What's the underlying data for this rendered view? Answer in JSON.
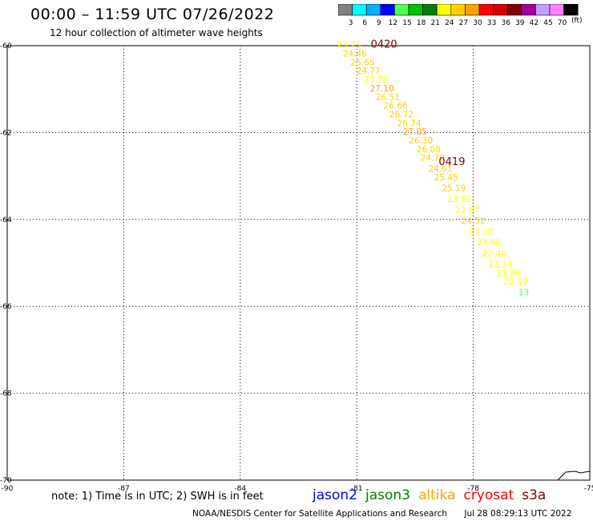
{
  "header": {
    "title": "00:00 – 11:59 UTC 07/26/2022",
    "subtitle": "12 hour collection of altimeter wave heights"
  },
  "colorbar": {
    "colors": [
      "#808080",
      "#00ffff",
      "#00b0ff",
      "#0000ff",
      "#50ff50",
      "#00c000",
      "#008000",
      "#ffff00",
      "#ffd000",
      "#ffa000",
      "#ff0000",
      "#d00000",
      "#800000",
      "#a000a0",
      "#c0a0ff",
      "#ff80ff",
      "#000000"
    ],
    "labels": [
      "3",
      "6",
      "9",
      "12",
      "15",
      "18",
      "21",
      "24",
      "27",
      "30",
      "33",
      "36",
      "39",
      "42",
      "45",
      "70"
    ],
    "units": "(ft)"
  },
  "chart_data": {
    "type": "scatter",
    "title": "00:00 – 11:59 UTC 07/26/2022",
    "xlim": [
      -90,
      -75
    ],
    "ylim": [
      -70,
      -60
    ],
    "x_ticks": [
      "-90",
      "-87",
      "-84",
      "-81",
      "-78",
      "-75"
    ],
    "y_ticks": [
      "-60",
      "-62",
      "-64",
      "-66",
      "-68",
      "-70"
    ],
    "grid": true,
    "pass_labels": [
      {
        "text": "0420",
        "lon": -80.3,
        "lat": -60.05
      },
      {
        "text": "0419",
        "lon": -78.55,
        "lat": -62.75
      }
    ],
    "points": [
      {
        "lon": -81.2,
        "lat": -60.05,
        "value": "23.75",
        "color": "#ffff00"
      },
      {
        "lon": -81.05,
        "lat": -60.25,
        "value": "24.46",
        "color": "#ffd000"
      },
      {
        "lon": -80.85,
        "lat": -60.45,
        "value": "25.65",
        "color": "#ffd000"
      },
      {
        "lon": -80.7,
        "lat": -60.65,
        "value": "24.77",
        "color": "#ffd000"
      },
      {
        "lon": -80.5,
        "lat": -60.85,
        "value": "23.72",
        "color": "#ffff00"
      },
      {
        "lon": -80.35,
        "lat": -61.05,
        "value": "27.10",
        "color": "#ffa000"
      },
      {
        "lon": -80.2,
        "lat": -61.25,
        "value": "26.51",
        "color": "#ffd000"
      },
      {
        "lon": -80.0,
        "lat": -61.45,
        "value": "26.66",
        "color": "#ffd000"
      },
      {
        "lon": -79.85,
        "lat": -61.65,
        "value": "26.72",
        "color": "#ffd000"
      },
      {
        "lon": -79.65,
        "lat": -61.85,
        "value": "26.74",
        "color": "#ffd000"
      },
      {
        "lon": -79.5,
        "lat": -62.05,
        "value": "27.05",
        "color": "#ffa000"
      },
      {
        "lon": -79.35,
        "lat": -62.25,
        "value": "26.30",
        "color": "#ffd000"
      },
      {
        "lon": -79.15,
        "lat": -62.45,
        "value": "26.08",
        "color": "#ffd000"
      },
      {
        "lon": -79.05,
        "lat": -62.65,
        "value": "24.70",
        "color": "#ffd000"
      },
      {
        "lon": -78.85,
        "lat": -62.9,
        "value": "24.61",
        "color": "#ffd000"
      },
      {
        "lon": -78.7,
        "lat": -63.1,
        "value": "25.45",
        "color": "#ffd000"
      },
      {
        "lon": -78.5,
        "lat": -63.35,
        "value": "25.19",
        "color": "#ffd000"
      },
      {
        "lon": -78.35,
        "lat": -63.6,
        "value": "23.82",
        "color": "#ffff00"
      },
      {
        "lon": -78.15,
        "lat": -63.85,
        "value": "22.87",
        "color": "#ffff00"
      },
      {
        "lon": -78.0,
        "lat": -64.1,
        "value": "24.52",
        "color": "#ffd000"
      },
      {
        "lon": -77.8,
        "lat": -64.35,
        "value": "23.70",
        "color": "#ffff00"
      },
      {
        "lon": -77.6,
        "lat": -64.6,
        "value": "23.98",
        "color": "#ffff00"
      },
      {
        "lon": -77.45,
        "lat": -64.85,
        "value": "22.46",
        "color": "#ffff00"
      },
      {
        "lon": -77.3,
        "lat": -65.1,
        "value": "23.34",
        "color": "#ffff00"
      },
      {
        "lon": -77.1,
        "lat": -65.3,
        "value": "21.88",
        "color": "#ffff00"
      },
      {
        "lon": -76.9,
        "lat": -65.5,
        "value": "22.19",
        "color": "#ffff00"
      },
      {
        "lon": -76.7,
        "lat": -65.75,
        "value": "13",
        "color": "#50ff50"
      }
    ]
  },
  "note": "note: 1) Time is in UTC; 2) SWH is in feet",
  "satellites": [
    {
      "name": "jason2",
      "color": "#0000ff"
    },
    {
      "name": "jason3",
      "color": "#008000"
    },
    {
      "name": "altika",
      "color": "#ffa000"
    },
    {
      "name": "cryosat",
      "color": "#ff0000"
    },
    {
      "name": "s3a",
      "color": "#800000"
    }
  ],
  "footer": {
    "credit": "NOAA/NESDIS Center for Satellite Applications and Research",
    "timestamp": "Jul 28 08:29:13 UTC 2022"
  }
}
